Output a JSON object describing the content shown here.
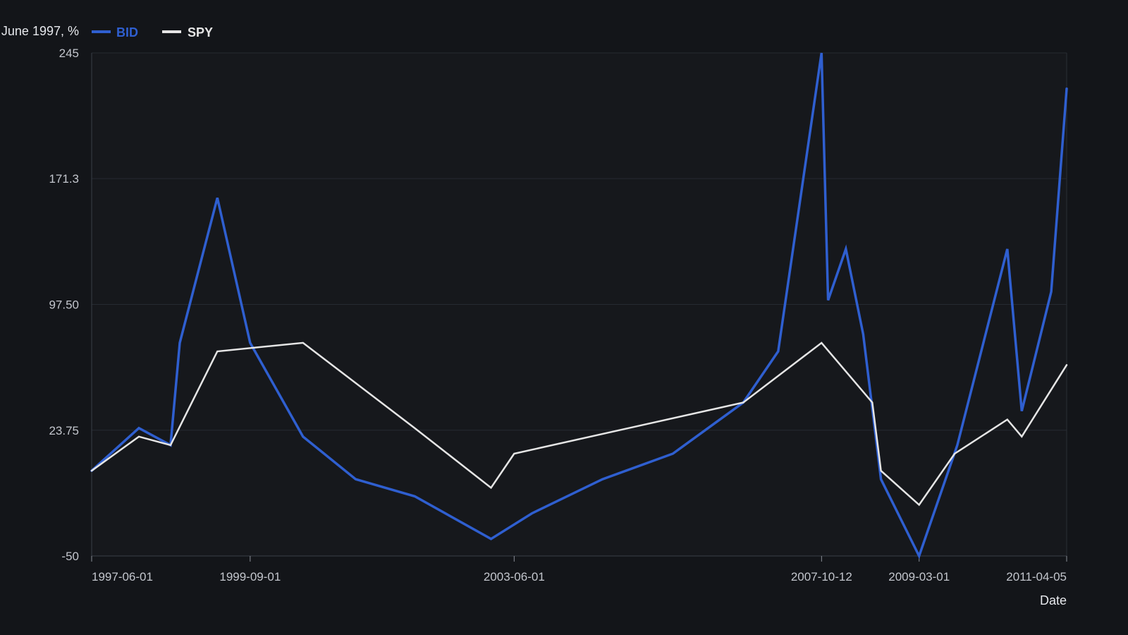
{
  "chart_data": {
    "type": "line",
    "ylabel": "June 1997, %",
    "xlabel": "Date",
    "ylim": [
      -50,
      245
    ],
    "y_ticks": [
      "245",
      "171.3",
      "97.50",
      "23.75",
      "-50"
    ],
    "x_ticks": [
      "1997-06-01",
      "1999-09-01",
      "2003-06-01",
      "2007-10-12",
      "2009-03-01",
      "2011-04-05"
    ],
    "x_range": [
      "1997-06-01",
      "2011-04-05"
    ],
    "grid": true,
    "legend_position": "top-left",
    "colors": {
      "BID": "#2f5fd0",
      "SPY": "#e5e5e5",
      "background": "#131519",
      "plot_background": "#16181c",
      "grid": "#262a31"
    },
    "series": [
      {
        "name": "BID",
        "x": [
          "1997-06-01",
          "1998-02-01",
          "1998-07-15",
          "1998-09-01",
          "1999-03-15",
          "1999-09-01",
          "2000-06-01",
          "2001-03-01",
          "2002-01-01",
          "2003-02-01",
          "2003-09-01",
          "2004-09-01",
          "2005-09-01",
          "2006-09-01",
          "2007-03-01",
          "2007-10-12",
          "2007-11-15",
          "2008-02-15",
          "2008-05-15",
          "2008-08-15",
          "2009-03-01",
          "2009-09-15",
          "2010-06-01",
          "2010-08-15",
          "2011-01-15",
          "2011-04-05"
        ],
        "values": [
          0,
          25,
          15,
          75,
          160,
          75,
          20,
          -5,
          -15,
          -40,
          -25,
          -5,
          10,
          40,
          70,
          245,
          100,
          130,
          80,
          -5,
          -50,
          15,
          130,
          35,
          105,
          224
        ]
      },
      {
        "name": "SPY",
        "x": [
          "1997-06-01",
          "1998-02-01",
          "1998-07-15",
          "1999-03-15",
          "2000-06-01",
          "2002-01-01",
          "2003-02-01",
          "2003-06-01",
          "2006-09-01",
          "2007-10-12",
          "2008-07-01",
          "2008-08-15",
          "2009-03-01",
          "2009-09-01",
          "2010-06-01",
          "2010-08-15",
          "2011-04-05"
        ],
        "values": [
          0,
          20,
          15,
          70,
          75,
          25,
          -10,
          10,
          40,
          75,
          40,
          0,
          -20,
          10,
          30,
          20,
          62
        ]
      }
    ]
  }
}
